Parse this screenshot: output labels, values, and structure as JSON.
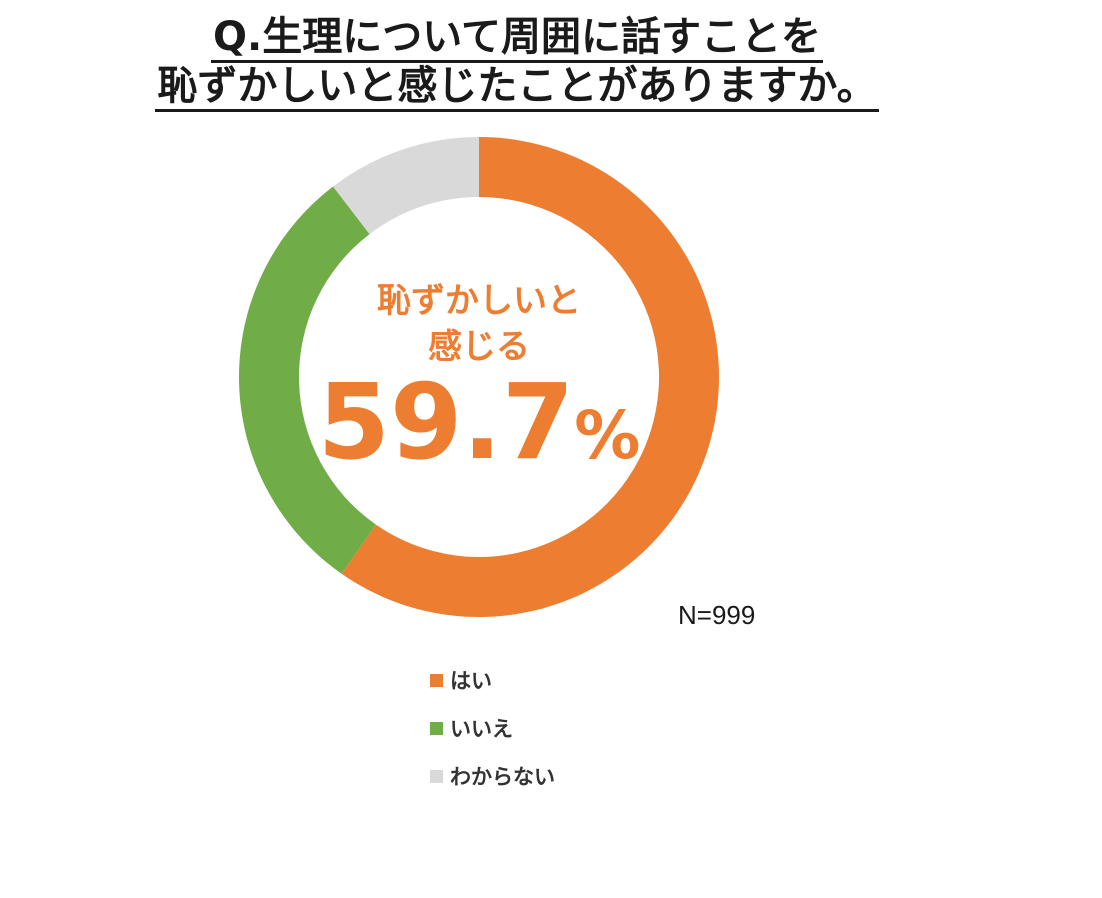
{
  "title": {
    "line1": "Q.生理について周囲に話すことを",
    "line2": "恥ずかしいと感じたことがありますか。"
  },
  "center": {
    "line1": "恥ずかしいと",
    "line2": "感じる",
    "number": "59.7",
    "unit": "%"
  },
  "sample": "N=999",
  "chart_data": {
    "type": "pie",
    "donut": true,
    "unit": "%",
    "categories": [
      "はい",
      "いいえ",
      "わからない"
    ],
    "values": [
      59.7,
      29.9,
      10.4
    ],
    "colors": [
      "#ed7d31",
      "#70ad47",
      "#d9d9d9"
    ],
    "start_angle": "12 o'clock",
    "direction": "clockwise",
    "legend": {
      "position": "bottom",
      "entries": [
        "はい",
        "いいえ",
        "わからない"
      ]
    }
  }
}
